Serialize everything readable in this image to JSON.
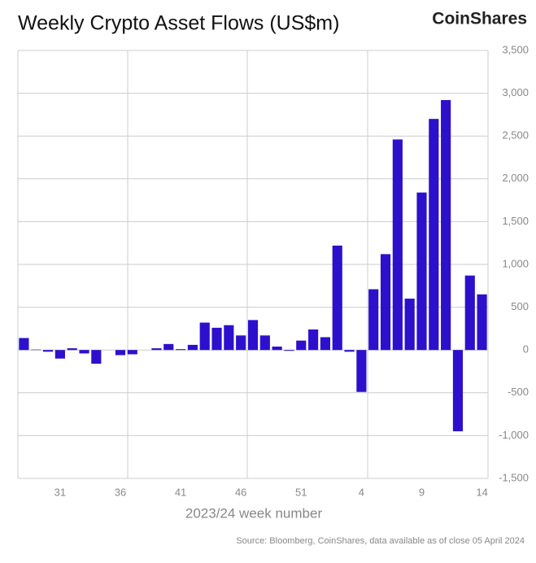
{
  "chart_data": {
    "type": "bar",
    "title": "Weekly Crypto Asset Flows (US$m)",
    "brand": "CoinShares",
    "x_label": "2023/24 week number",
    "source": "Source: Bloomberg, CoinShares, data available as of close 05 April 2024",
    "categories": [
      null,
      null,
      null,
      "31",
      null,
      null,
      null,
      null,
      "36",
      null,
      null,
      null,
      null,
      "41",
      null,
      null,
      null,
      null,
      "46",
      null,
      null,
      null,
      null,
      "51",
      null,
      null,
      null,
      null,
      "4",
      null,
      null,
      null,
      null,
      "9",
      null,
      null,
      null,
      null,
      "14"
    ],
    "values": [
      140,
      5,
      -20,
      -100,
      20,
      -40,
      -160,
      0,
      -60,
      -50,
      0,
      20,
      70,
      10,
      60,
      320,
      260,
      290,
      170,
      350,
      170,
      40,
      -10,
      110,
      240,
      150,
      1220,
      -20,
      -490,
      710,
      1120,
      2460,
      600,
      1840,
      2700,
      2920,
      -950,
      870,
      650
    ],
    "color": "#2d10cc",
    "ylim": [
      -1500,
      3500
    ],
    "yticks": [
      {
        "value": -1500,
        "label": "-1,500"
      },
      {
        "value": -1000,
        "label": "-1,000"
      },
      -500,
      0,
      500,
      {
        "value": 1000,
        "label": "1,000"
      },
      {
        "value": 1500,
        "label": "1,500"
      },
      {
        "value": 2000,
        "label": "2,000"
      },
      {
        "value": 2500,
        "label": "2,500"
      },
      {
        "value": 3000,
        "label": "3,000"
      },
      {
        "value": 3500,
        "label": "3,500"
      }
    ],
    "grid": true
  }
}
